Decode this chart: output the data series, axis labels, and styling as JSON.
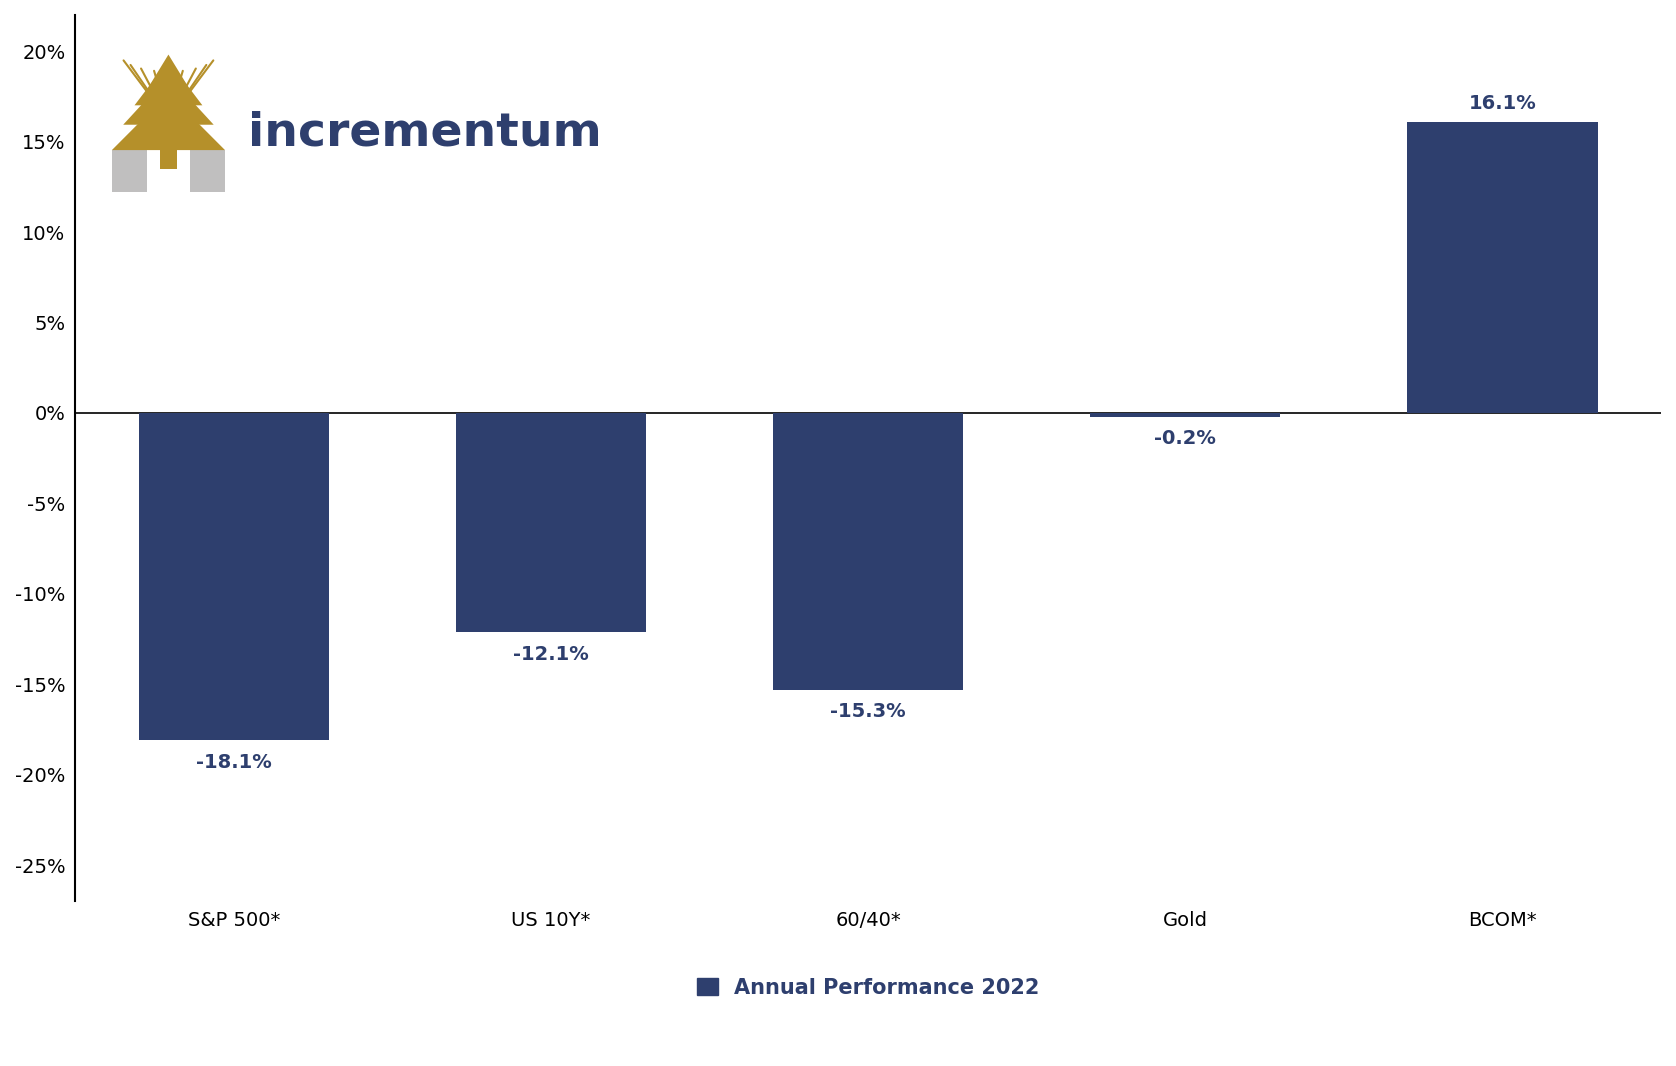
{
  "categories": [
    "S&P 500*",
    "US 10Y*",
    "60/40*",
    "Gold",
    "BCOM*"
  ],
  "values": [
    -18.1,
    -12.1,
    -15.3,
    -0.2,
    16.1
  ],
  "bar_color": "#2e3f6e",
  "label_values": [
    "-18.1%",
    "-12.1%",
    "-15.3%",
    "-0.2%",
    "16.1%"
  ],
  "ylim": [
    -0.27,
    0.22
  ],
  "yticks": [
    -0.25,
    -0.2,
    -0.15,
    -0.1,
    -0.05,
    0.0,
    0.05,
    0.1,
    0.15,
    0.2
  ],
  "ytick_labels": [
    "-25%",
    "-20%",
    "-15%",
    "-10%",
    "-5%",
    "0%",
    "5%",
    "10%",
    "15%",
    "20%"
  ],
  "legend_label": "Annual Performance 2022",
  "logo_text": "incrementum",
  "background_color": "#ffffff",
  "bar_label_fontsize": 14,
  "tick_label_fontsize": 14,
  "axis_label_fontsize": 14,
  "legend_fontsize": 15,
  "bar_width": 0.6,
  "logo_text_color": "#2e3f6e",
  "logo_text_fontsize": 34,
  "gold_color": "#b5902a",
  "gray_color": "#c0bfbf"
}
